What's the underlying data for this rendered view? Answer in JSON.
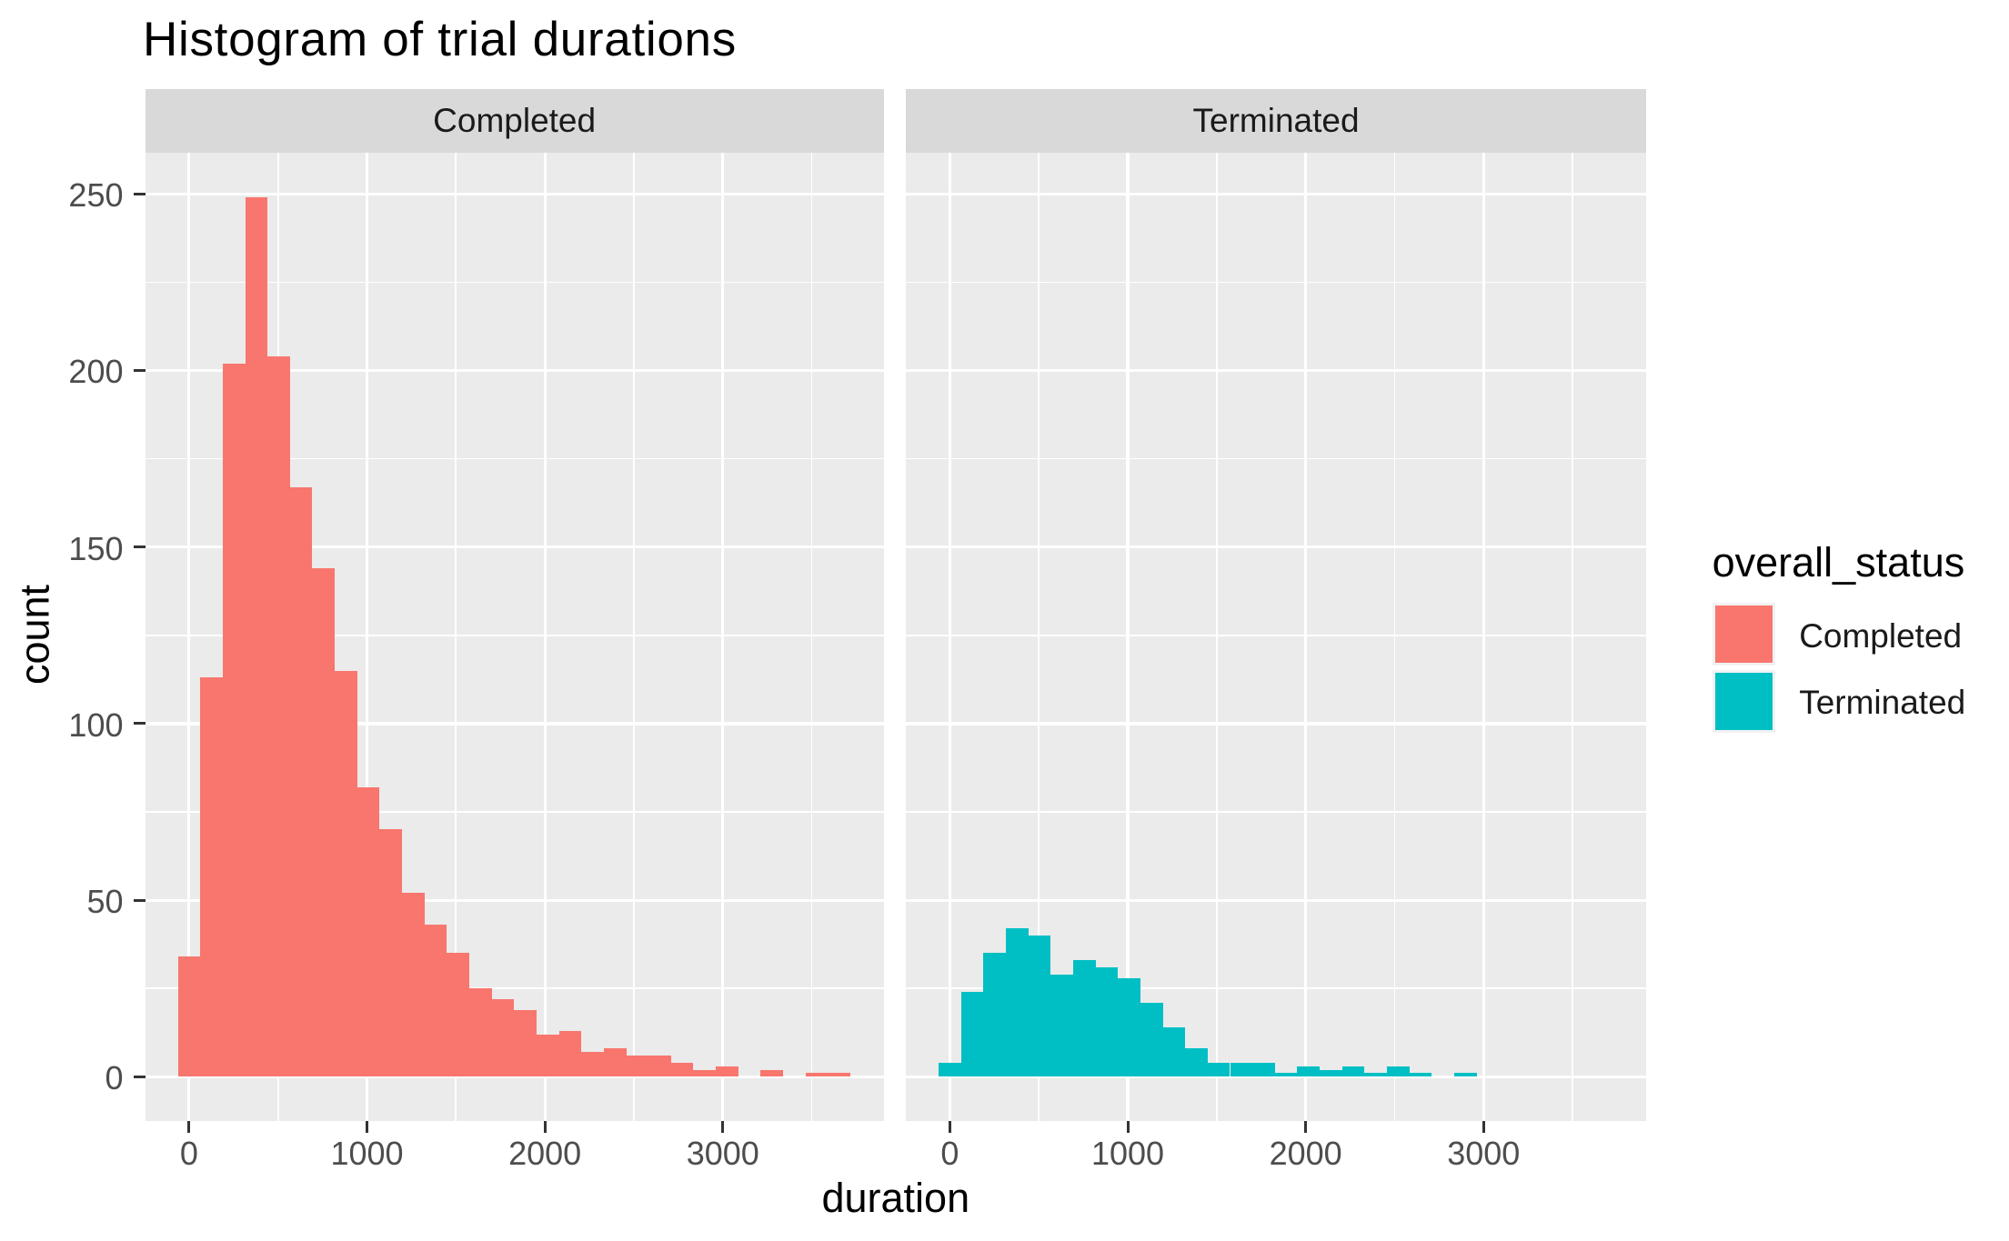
{
  "chart_data": {
    "type": "bar",
    "subtype": "faceted-histogram",
    "title": "Histogram of trial durations",
    "xlabel": "duration",
    "ylabel": "count",
    "facets": [
      "Completed",
      "Terminated"
    ],
    "legend": {
      "title": "overall_status",
      "position": "right",
      "entries": [
        {
          "label": "Completed",
          "color": "#F8766D"
        },
        {
          "label": "Terminated",
          "color": "#00BFC4"
        }
      ]
    },
    "bins": {
      "start": -63,
      "width": 126
    },
    "series": [
      {
        "name": "Completed",
        "color": "#F8766D",
        "counts": [
          34,
          113,
          202,
          249,
          204,
          167,
          144,
          115,
          82,
          70,
          52,
          43,
          35,
          25,
          22,
          19,
          12,
          13,
          7,
          8,
          6,
          6,
          4,
          2,
          3,
          0,
          2,
          0,
          1,
          1
        ]
      },
      {
        "name": "Terminated",
        "color": "#00BFC4",
        "counts": [
          4,
          24,
          35,
          42,
          40,
          29,
          33,
          31,
          28,
          21,
          14,
          8,
          4,
          4,
          4,
          1,
          3,
          2,
          3,
          1,
          3,
          1,
          0,
          1,
          0,
          0,
          0,
          0,
          0,
          0
        ]
      }
    ],
    "x_ticks": [
      0,
      1000,
      2000,
      3000
    ],
    "x_minor_breaks": [
      500,
      1500,
      2500,
      3500
    ],
    "y_ticks": [
      0,
      50,
      100,
      150,
      200,
      250
    ],
    "y_minor_breaks": [
      25,
      75,
      125,
      175,
      225
    ],
    "xlim": [
      -252,
      3906
    ],
    "ylim": [
      -12.45,
      261.45
    ],
    "grid": true,
    "colors": {
      "background": "#FFFFFF",
      "panel_background": "#EBEBEB",
      "strip_background": "#D9D9D9",
      "gridline": "#FFFFFF",
      "axis_text": "#4D4D4D",
      "tick_mark": "#333333",
      "strip_text": "#1A1A1A",
      "title_text": "#000000"
    }
  }
}
